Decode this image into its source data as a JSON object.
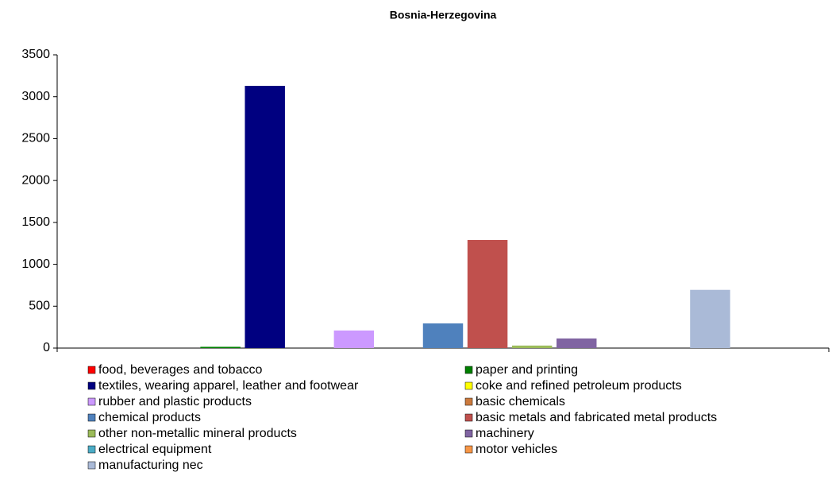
{
  "chart_data": {
    "type": "bar",
    "title": "Bosnia-Herzegovina",
    "categories": [
      null
    ],
    "series": [
      {
        "name": "food, beverages and tobacco",
        "color": "#ff0000",
        "values": [
          0
        ]
      },
      {
        "name": "paper and printing",
        "color": "#008000",
        "values": [
          15
        ]
      },
      {
        "name": "textiles, wearing apparel, leather and footwear",
        "color": "#000080",
        "values": [
          3130
        ]
      },
      {
        "name": "coke and refined petroleum products",
        "color": "#ffff00",
        "values": [
          0
        ]
      },
      {
        "name": "rubber and plastic products",
        "color": "#cc99ff",
        "values": [
          210
        ]
      },
      {
        "name": "basic chemicals",
        "color": "#cc7a3d",
        "values": [
          0
        ]
      },
      {
        "name": "chemical products",
        "color": "#4f81bd",
        "values": [
          295
        ]
      },
      {
        "name": "basic metals and fabricated metal products",
        "color": "#c0504d",
        "values": [
          1290
        ]
      },
      {
        "name": "other non-metallic mineral products",
        "color": "#9bbb59",
        "values": [
          30
        ]
      },
      {
        "name": "machinery",
        "color": "#8064a2",
        "values": [
          115
        ]
      },
      {
        "name": "electrical equipment",
        "color": "#4bacc6",
        "values": [
          0
        ]
      },
      {
        "name": "motor vehicles",
        "color": "#f79646",
        "values": [
          0
        ]
      },
      {
        "name": "manufacturing nec",
        "color": "#aabad7",
        "values": [
          695
        ]
      }
    ],
    "ylim": [
      0,
      3500
    ],
    "yticks": [
      0,
      500,
      1000,
      1500,
      2000,
      2500,
      3000,
      3500
    ],
    "legend": "bottom"
  }
}
